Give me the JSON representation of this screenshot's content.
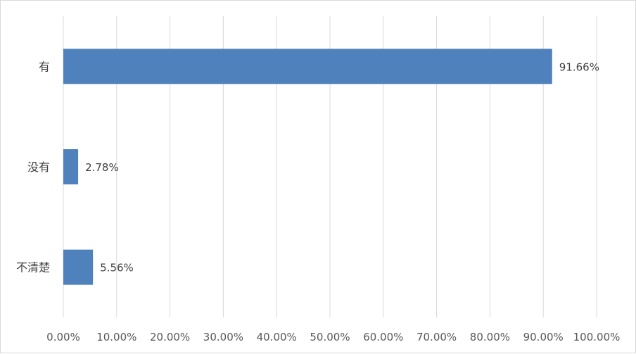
{
  "chart_data": {
    "type": "bar",
    "orientation": "horizontal",
    "categories": [
      "有",
      "没有",
      "不清楚"
    ],
    "values": [
      91.66,
      2.78,
      5.56
    ],
    "value_labels": [
      "91.66%",
      "2.78%",
      "5.56%"
    ],
    "x_ticks": [
      "0.00%",
      "10.00%",
      "20.00%",
      "30.00%",
      "40.00%",
      "50.00%",
      "60.00%",
      "70.00%",
      "80.00%",
      "90.00%",
      "100.00%"
    ],
    "xlim": [
      0,
      100
    ],
    "grid": true,
    "legend": "none",
    "title": "",
    "xlabel": "",
    "ylabel": "",
    "bar_color": "#4f81bd",
    "grid_color": "#d9d9d9"
  }
}
